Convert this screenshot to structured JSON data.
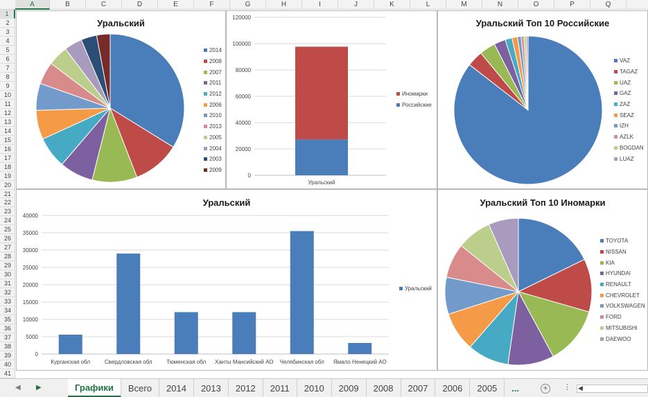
{
  "columns": [
    "A",
    "B",
    "C",
    "D",
    "E",
    "F",
    "G",
    "H",
    "I",
    "J",
    "K",
    "L",
    "M",
    "N",
    "O",
    "P",
    "Q"
  ],
  "active_column": "A",
  "rows": [
    "1",
    "2",
    "3",
    "4",
    "5",
    "6",
    "7",
    "8",
    "9",
    "10",
    "11",
    "12",
    "13",
    "14",
    "15",
    "16",
    "17",
    "18",
    "19",
    "20",
    "21",
    "22",
    "23",
    "24",
    "25",
    "26",
    "27",
    "28",
    "29",
    "30",
    "31",
    "32",
    "33",
    "34",
    "35",
    "36",
    "37",
    "38",
    "39",
    "40",
    "41"
  ],
  "active_row": "1",
  "colors": {
    "excel_green": "#217346",
    "c1": "#4a7ebb",
    "c2": "#be4b48",
    "c3": "#98b954",
    "c4": "#7d60a0",
    "c5": "#46aac5",
    "c6": "#f59a47",
    "c7": "#729aca",
    "c8": "#d88b8a",
    "c9": "#bbce8c",
    "c10": "#a99bbd"
  },
  "sheet_tabs": {
    "prev_icon": "triangle-left-icon",
    "next_icon": "triangle-right-icon",
    "tabs": [
      "Графики",
      "Всего",
      "2014",
      "2013",
      "2012",
      "2011",
      "2010",
      "2009",
      "2008",
      "2007",
      "2006",
      "2005"
    ],
    "active": "Графики",
    "more": "...",
    "add_icon": "plus-circle-icon",
    "add_label": "+",
    "menu_icon": "vertical-dots-icon",
    "menu_label": "⋮",
    "scroll_left_label": "◀"
  },
  "chart_data": [
    {
      "type": "pie",
      "title": "Уральский",
      "categories": [
        "2014",
        "2008",
        "2007",
        "2011",
        "2012",
        "2006",
        "2010",
        "2013",
        "2005",
        "2004",
        "2003",
        "2009"
      ],
      "values": [
        34.5,
        10.5,
        10.0,
        7.5,
        7.0,
        6.5,
        6.0,
        5.0,
        4.5,
        4.0,
        3.5,
        3.0
      ],
      "legend": "right"
    },
    {
      "type": "bar",
      "stacked": true,
      "title": "",
      "categories": [
        "Уральский"
      ],
      "series": [
        {
          "name": "Иномарки",
          "values": [
            70500
          ]
        },
        {
          "name": "Российские",
          "values": [
            27200
          ]
        }
      ],
      "ylim": [
        0,
        120000
      ],
      "yticks": [
        "0",
        "20000",
        "40000",
        "60000",
        "80000",
        "100000",
        "120000"
      ],
      "grid": true,
      "legend": "right"
    },
    {
      "type": "pie",
      "title": "Уральский Топ 10 Российские",
      "categories": [
        "VAZ",
        "TAGAZ",
        "UAZ",
        "GAZ",
        "ZAZ",
        "SEAZ",
        "IZH",
        "AZLK",
        "BOGDAN",
        "LUAZ"
      ],
      "values": [
        85.5,
        3.5,
        3.5,
        2.5,
        1.5,
        1.2,
        0.8,
        0.6,
        0.5,
        0.4
      ],
      "legend": "right"
    },
    {
      "type": "bar",
      "title": "Уральский",
      "categories": [
        "Курганская обл",
        "Свердловская обл",
        "Тюменская обл",
        "Ханты Мансийский АО",
        "Челябинская обл",
        "Ямало Ненецкий АО"
      ],
      "series": [
        {
          "name": "Уральский",
          "values": [
            5600,
            29000,
            12100,
            12100,
            35500,
            3200
          ]
        }
      ],
      "ylim": [
        0,
        40000
      ],
      "yticks": [
        "0",
        "5000",
        "10000",
        "15000",
        "20000",
        "25000",
        "30000",
        "35000",
        "40000"
      ],
      "grid": true,
      "legend": "right"
    },
    {
      "type": "pie",
      "title": "Уральский Топ 10 Иномарки",
      "categories": [
        "TOYOTA",
        "NISSAN",
        "KIA",
        "HYUNDAI",
        "RENAULT",
        "CHEVROLET",
        "VOLKSWAGEN",
        "FORD",
        "MITSUBISHI",
        "DAEWOO"
      ],
      "values": [
        17.5,
        11.5,
        12.5,
        10.0,
        9.0,
        8.5,
        8.0,
        7.5,
        7.5,
        6.5
      ],
      "legend": "right"
    }
  ]
}
